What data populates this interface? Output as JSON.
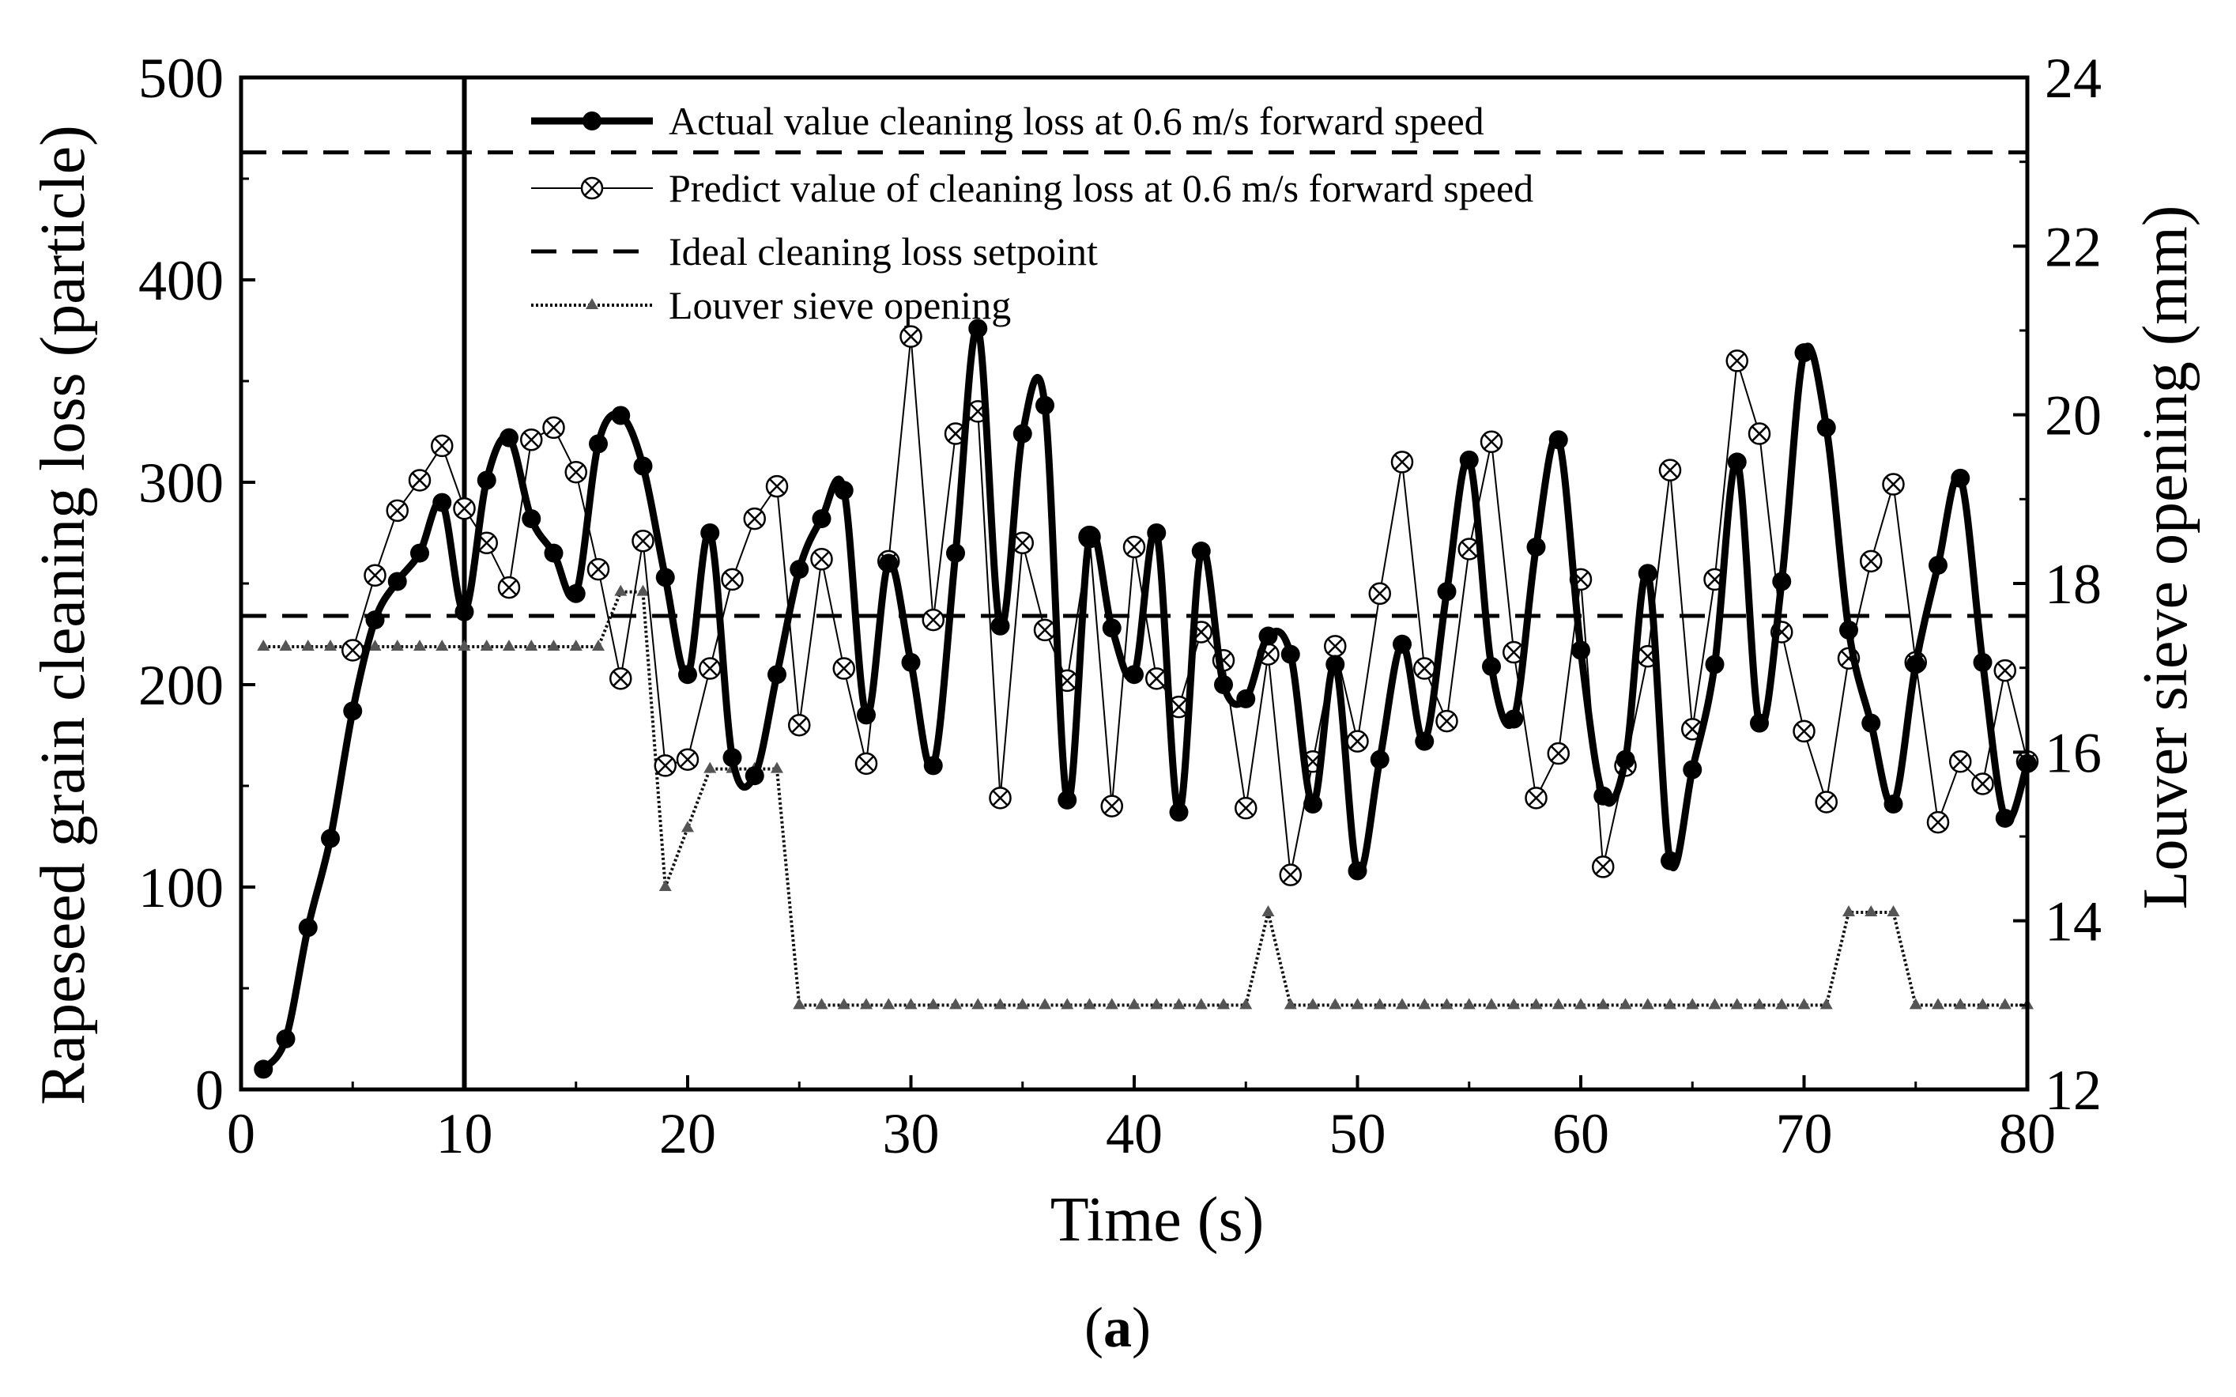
{
  "chart_data": {
    "type": "line",
    "title": "",
    "caption": {
      "open": "(",
      "letter": "a",
      "close": ")"
    },
    "xlabel": "Time (s)",
    "ylabel_left": "Rapeseed grain cleaning loss (particle)",
    "ylabel_right": "Louver sieve opening (mm)",
    "xlim": [
      0,
      80
    ],
    "ylim_left": [
      0,
      500
    ],
    "ylim_right": [
      12,
      24
    ],
    "xticks": [
      0,
      10,
      20,
      30,
      40,
      50,
      60,
      70,
      80
    ],
    "yticks_left": [
      0,
      100,
      200,
      300,
      400,
      500
    ],
    "yticks_right": [
      12,
      14,
      16,
      18,
      20,
      22,
      24
    ],
    "legend": [
      "Actual value cleaning loss at 0.6 m/s forward speed",
      "Predict value of cleaning loss at 0.6 m/s forward speed",
      "Ideal cleaning loss setpoint",
      "Louver sieve opening"
    ],
    "reference_lines": {
      "vertical_x": 10,
      "setpoint_upper": 463,
      "setpoint_lower": 234
    },
    "series": [
      {
        "name": "Actual value cleaning loss at 0.6 m/s forward speed",
        "axis": "left",
        "x": [
          1,
          2,
          3,
          4,
          5,
          6,
          7,
          8,
          9,
          10,
          11,
          12,
          13,
          14,
          15,
          16,
          17,
          18,
          19,
          20,
          21,
          22,
          23,
          24,
          25,
          26,
          27,
          28,
          29,
          30,
          31,
          32,
          33,
          34,
          35,
          36,
          37,
          38,
          39,
          40,
          41,
          42,
          43,
          44,
          45,
          46,
          47,
          48,
          49,
          50,
          51,
          52,
          53,
          54,
          55,
          56,
          57,
          58,
          59,
          60,
          61,
          62,
          63,
          64,
          65,
          66,
          67,
          68,
          69,
          70,
          71,
          72,
          73,
          74,
          75,
          76,
          77,
          78,
          79,
          80
        ],
        "values": [
          10,
          25,
          80,
          124,
          187,
          232,
          251,
          265,
          290,
          236,
          301,
          322,
          282,
          265,
          245,
          319,
          333,
          308,
          253,
          205,
          275,
          164,
          155,
          205,
          257,
          282,
          296,
          185,
          260,
          211,
          160,
          265,
          376,
          229,
          324,
          338,
          143,
          273,
          228,
          205,
          275,
          137,
          266,
          200,
          193,
          224,
          215,
          141,
          210,
          108,
          163,
          220,
          172,
          246,
          311,
          209,
          183,
          268,
          321,
          217,
          145,
          163,
          255,
          113,
          158,
          210,
          310,
          181,
          251,
          364,
          327,
          227,
          181,
          141,
          210,
          259,
          302,
          211,
          134,
          161
        ]
      },
      {
        "name": "Predict value of cleaning loss at 0.6 m/s forward speed",
        "axis": "left",
        "x": [
          5,
          6,
          7,
          8,
          9,
          10,
          11,
          12,
          13,
          14,
          15,
          16,
          17,
          18,
          19,
          20,
          21,
          22,
          23,
          24,
          25,
          26,
          27,
          28,
          29,
          30,
          31,
          32,
          33,
          34,
          35,
          36,
          37,
          38,
          39,
          40,
          41,
          42,
          43,
          44,
          45,
          46,
          47,
          48,
          49,
          50,
          51,
          52,
          53,
          54,
          55,
          56,
          57,
          58,
          59,
          60,
          61,
          62,
          63,
          64,
          65,
          66,
          67,
          68,
          69,
          70,
          71,
          72,
          73,
          74,
          75,
          76,
          77,
          78,
          79,
          80
        ],
        "values": [
          217,
          254,
          286,
          301,
          318,
          287,
          270,
          248,
          321,
          327,
          305,
          257,
          203,
          271,
          160,
          163,
          208,
          252,
          282,
          298,
          180,
          262,
          208,
          161,
          261,
          372,
          232,
          324,
          335,
          144,
          270,
          227,
          202,
          273,
          140,
          268,
          203,
          189,
          226,
          212,
          139,
          215,
          106,
          162,
          219,
          172,
          245,
          310,
          208,
          182,
          267,
          320,
          216,
          144,
          166,
          252,
          110,
          160,
          214,
          306,
          178,
          252,
          360,
          324,
          226,
          177,
          142,
          213,
          261,
          299,
          211,
          132,
          162,
          151,
          207,
          162
        ]
      },
      {
        "name": "Louver sieve opening",
        "axis": "right",
        "x": [
          1,
          2,
          3,
          4,
          5,
          6,
          7,
          8,
          9,
          10,
          11,
          12,
          13,
          14,
          15,
          16,
          17,
          18,
          19,
          20,
          21,
          22,
          23,
          24,
          25,
          26,
          27,
          28,
          29,
          30,
          31,
          32,
          33,
          34,
          35,
          36,
          37,
          38,
          39,
          40,
          41,
          42,
          43,
          44,
          45,
          46,
          47,
          48,
          49,
          50,
          51,
          52,
          53,
          54,
          55,
          56,
          57,
          58,
          59,
          60,
          61,
          62,
          63,
          64,
          65,
          66,
          67,
          68,
          69,
          70,
          71,
          72,
          73,
          74,
          75,
          76,
          77,
          78,
          79,
          80
        ],
        "values": [
          17.25,
          17.25,
          17.25,
          17.25,
          17.25,
          17.25,
          17.25,
          17.25,
          17.25,
          17.25,
          17.25,
          17.25,
          17.25,
          17.25,
          17.25,
          17.25,
          17.9,
          17.9,
          14.4,
          15.1,
          15.8,
          15.8,
          15.8,
          15.8,
          13.0,
          13.0,
          13.0,
          13.0,
          13.0,
          13.0,
          13.0,
          13.0,
          13.0,
          13.0,
          13.0,
          13.0,
          13.0,
          13.0,
          13.0,
          13.0,
          13.0,
          13.0,
          13.0,
          13.0,
          13.0,
          14.1,
          13.0,
          13.0,
          13.0,
          13.0,
          13.0,
          13.0,
          13.0,
          13.0,
          13.0,
          13.0,
          13.0,
          13.0,
          13.0,
          13.0,
          13.0,
          13.0,
          13.0,
          13.0,
          13.0,
          13.0,
          13.0,
          13.0,
          13.0,
          13.0,
          13.0,
          14.1,
          14.1,
          14.1,
          13.0,
          13.0,
          13.0,
          13.0,
          13.0,
          13.0
        ]
      }
    ]
  }
}
